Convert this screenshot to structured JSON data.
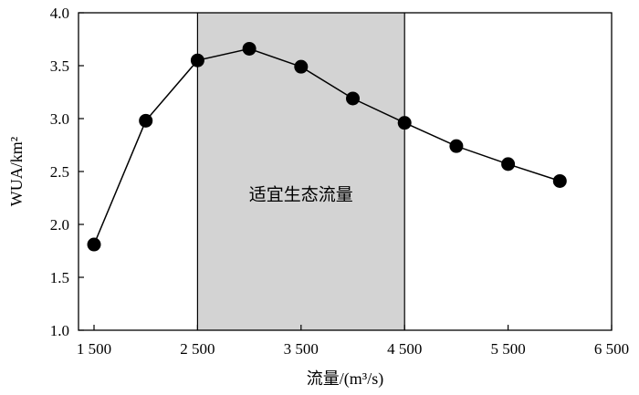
{
  "chart_data": {
    "type": "line",
    "xlabel": "流量/(m³/s)",
    "ylabel": "WUA/km²",
    "xlim": [
      1350,
      6500
    ],
    "ylim": [
      1.0,
      4.0
    ],
    "x_ticks": [
      1500,
      2500,
      3500,
      4500,
      5500,
      6500
    ],
    "x_tick_labels": [
      "1 500",
      "2 500",
      "3 500",
      "4 500",
      "5 500",
      "6 500"
    ],
    "y_ticks": [
      1.0,
      1.5,
      2.0,
      2.5,
      3.0,
      3.5,
      4.0
    ],
    "y_tick_labels": [
      "1.0",
      "1.5",
      "2.0",
      "2.5",
      "3.0",
      "3.5",
      "4.0"
    ],
    "grid": false,
    "x": [
      1500,
      2000,
      2500,
      3000,
      3500,
      4000,
      4500,
      5000,
      5500,
      6000
    ],
    "values": [
      1.81,
      2.98,
      3.55,
      3.66,
      3.49,
      3.19,
      2.96,
      2.74,
      2.57,
      2.41
    ],
    "shaded_region": {
      "x_range": [
        2500,
        4500
      ],
      "label": "适宜生态流量",
      "color": "#d3d3d3"
    },
    "line_color": "#000000",
    "marker_color": "#000000"
  }
}
